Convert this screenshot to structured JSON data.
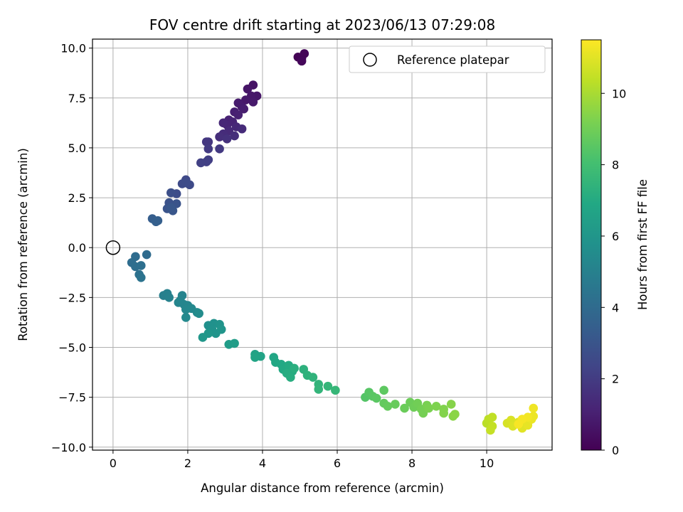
{
  "chart_data": {
    "type": "scatter",
    "title": "FOV centre drift starting at 2023/06/13 07:29:08",
    "xlabel": "Angular distance from reference (arcmin)",
    "ylabel": "Rotation from reference (arcmin)",
    "xlim": [
      -0.55,
      11.75
    ],
    "ylim": [
      -10.15,
      10.45
    ],
    "xticks": [
      0,
      2,
      4,
      6,
      8,
      10
    ],
    "yticks": [
      -10.0,
      -7.5,
      -5.0,
      -2.5,
      0.0,
      2.5,
      5.0,
      7.5,
      10.0
    ],
    "grid": true,
    "legend": {
      "position": "top-right",
      "entries": [
        "Reference platepar"
      ]
    },
    "reference_point": {
      "x": 0,
      "y": 0
    },
    "colorbar": {
      "label": "Hours from first FF file",
      "colormap": "viridis",
      "range": [
        0,
        11.5
      ],
      "ticks": [
        0,
        2,
        4,
        6,
        8,
        10
      ]
    },
    "series": [
      {
        "points": [
          {
            "x": 4.95,
            "y": 9.55,
            "c": 0.05
          },
          {
            "x": 5.05,
            "y": 9.5,
            "c": 0.1
          },
          {
            "x": 5.12,
            "y": 9.72,
            "c": 0.15
          },
          {
            "x": 5.05,
            "y": 9.35,
            "c": 0.2
          },
          {
            "x": 3.75,
            "y": 8.15,
            "c": 0.6
          },
          {
            "x": 3.6,
            "y": 7.95,
            "c": 0.65
          },
          {
            "x": 3.85,
            "y": 7.6,
            "c": 0.7
          },
          {
            "x": 3.7,
            "y": 7.6,
            "c": 0.72
          },
          {
            "x": 3.55,
            "y": 7.4,
            "c": 0.78
          },
          {
            "x": 3.75,
            "y": 7.3,
            "c": 0.8
          },
          {
            "x": 3.45,
            "y": 7.05,
            "c": 0.88
          },
          {
            "x": 3.35,
            "y": 7.25,
            "c": 0.9
          },
          {
            "x": 3.5,
            "y": 6.95,
            "c": 0.95
          },
          {
            "x": 3.25,
            "y": 6.8,
            "c": 1.0
          },
          {
            "x": 3.35,
            "y": 6.65,
            "c": 1.05
          },
          {
            "x": 3.1,
            "y": 6.4,
            "c": 1.1
          },
          {
            "x": 3.2,
            "y": 6.3,
            "c": 1.15
          },
          {
            "x": 3.05,
            "y": 6.15,
            "c": 1.2
          },
          {
            "x": 2.95,
            "y": 6.25,
            "c": 1.25
          },
          {
            "x": 3.3,
            "y": 6.05,
            "c": 1.3
          },
          {
            "x": 3.1,
            "y": 5.85,
            "c": 1.35
          },
          {
            "x": 3.45,
            "y": 5.95,
            "c": 1.4
          },
          {
            "x": 2.95,
            "y": 5.7,
            "c": 1.45
          },
          {
            "x": 3.25,
            "y": 5.6,
            "c": 1.5
          },
          {
            "x": 2.85,
            "y": 5.55,
            "c": 1.55
          },
          {
            "x": 3.05,
            "y": 5.45,
            "c": 1.6
          },
          {
            "x": 2.55,
            "y": 5.3,
            "c": 1.8
          },
          {
            "x": 2.5,
            "y": 5.3,
            "c": 1.85
          },
          {
            "x": 2.85,
            "y": 4.95,
            "c": 1.9
          },
          {
            "x": 2.55,
            "y": 4.95,
            "c": 1.95
          },
          {
            "x": 2.55,
            "y": 4.4,
            "c": 2.1
          },
          {
            "x": 2.5,
            "y": 4.3,
            "c": 2.15
          },
          {
            "x": 2.35,
            "y": 4.25,
            "c": 2.2
          },
          {
            "x": 1.95,
            "y": 3.4,
            "c": 2.5
          },
          {
            "x": 2.05,
            "y": 3.15,
            "c": 2.55
          },
          {
            "x": 1.85,
            "y": 3.2,
            "c": 2.6
          },
          {
            "x": 1.95,
            "y": 3.25,
            "c": 2.62
          },
          {
            "x": 1.7,
            "y": 2.7,
            "c": 2.7
          },
          {
            "x": 1.55,
            "y": 2.75,
            "c": 2.75
          },
          {
            "x": 1.5,
            "y": 2.25,
            "c": 2.9
          },
          {
            "x": 1.7,
            "y": 2.2,
            "c": 2.95
          },
          {
            "x": 1.45,
            "y": 1.95,
            "c": 3.0
          },
          {
            "x": 1.6,
            "y": 1.85,
            "c": 3.05
          },
          {
            "x": 1.55,
            "y": 2.0,
            "c": 3.1
          },
          {
            "x": 1.05,
            "y": 1.45,
            "c": 3.4
          },
          {
            "x": 1.2,
            "y": 1.35,
            "c": 3.45
          },
          {
            "x": 1.15,
            "y": 1.3,
            "c": 3.5
          },
          {
            "x": 0.9,
            "y": -0.35,
            "c": 4.0
          },
          {
            "x": 0.6,
            "y": -0.45,
            "c": 4.05
          },
          {
            "x": 0.5,
            "y": -0.75,
            "c": 4.1
          },
          {
            "x": 0.6,
            "y": -0.95,
            "c": 4.15
          },
          {
            "x": 0.75,
            "y": -0.9,
            "c": 4.2
          },
          {
            "x": 0.7,
            "y": -1.35,
            "c": 4.3
          },
          {
            "x": 0.75,
            "y": -1.5,
            "c": 4.35
          },
          {
            "x": 1.35,
            "y": -2.4,
            "c": 4.9
          },
          {
            "x": 1.45,
            "y": -2.3,
            "c": 4.95
          },
          {
            "x": 1.5,
            "y": -2.5,
            "c": 5.0
          },
          {
            "x": 1.85,
            "y": -2.4,
            "c": 5.1
          },
          {
            "x": 1.8,
            "y": -2.65,
            "c": 5.15
          },
          {
            "x": 1.9,
            "y": -2.85,
            "c": 5.2
          },
          {
            "x": 1.75,
            "y": -2.75,
            "c": 5.22
          },
          {
            "x": 2.0,
            "y": -2.9,
            "c": 5.25
          },
          {
            "x": 1.95,
            "y": -3.1,
            "c": 5.3
          },
          {
            "x": 2.1,
            "y": -3.05,
            "c": 5.35
          },
          {
            "x": 1.95,
            "y": -3.5,
            "c": 5.4
          },
          {
            "x": 2.25,
            "y": -3.25,
            "c": 5.45
          },
          {
            "x": 2.3,
            "y": -3.3,
            "c": 5.5
          },
          {
            "x": 2.55,
            "y": -3.9,
            "c": 5.7
          },
          {
            "x": 2.7,
            "y": -3.8,
            "c": 5.75
          },
          {
            "x": 2.65,
            "y": -4.1,
            "c": 5.8
          },
          {
            "x": 2.85,
            "y": -3.85,
            "c": 5.85
          },
          {
            "x": 2.75,
            "y": -4.3,
            "c": 5.9
          },
          {
            "x": 2.9,
            "y": -4.1,
            "c": 5.95
          },
          {
            "x": 2.55,
            "y": -4.3,
            "c": 6.0
          },
          {
            "x": 2.4,
            "y": -4.5,
            "c": 6.05
          },
          {
            "x": 3.1,
            "y": -4.85,
            "c": 6.3
          },
          {
            "x": 3.25,
            "y": -4.8,
            "c": 6.35
          },
          {
            "x": 3.8,
            "y": -5.35,
            "c": 6.6
          },
          {
            "x": 3.95,
            "y": -5.45,
            "c": 6.65
          },
          {
            "x": 3.8,
            "y": -5.5,
            "c": 6.7
          },
          {
            "x": 4.3,
            "y": -5.5,
            "c": 6.8
          },
          {
            "x": 4.35,
            "y": -5.75,
            "c": 6.85
          },
          {
            "x": 4.5,
            "y": -5.85,
            "c": 6.9
          },
          {
            "x": 4.55,
            "y": -6.1,
            "c": 6.95
          },
          {
            "x": 4.7,
            "y": -5.9,
            "c": 7.0
          },
          {
            "x": 4.8,
            "y": -6.2,
            "c": 7.05
          },
          {
            "x": 4.65,
            "y": -6.3,
            "c": 7.1
          },
          {
            "x": 4.75,
            "y": -6.5,
            "c": 7.15
          },
          {
            "x": 4.85,
            "y": -6.05,
            "c": 7.2
          },
          {
            "x": 5.1,
            "y": -6.1,
            "c": 7.3
          },
          {
            "x": 5.2,
            "y": -6.4,
            "c": 7.35
          },
          {
            "x": 5.35,
            "y": -6.5,
            "c": 7.4
          },
          {
            "x": 5.5,
            "y": -6.85,
            "c": 7.45
          },
          {
            "x": 5.5,
            "y": -7.1,
            "c": 7.5
          },
          {
            "x": 5.75,
            "y": -6.95,
            "c": 7.55
          },
          {
            "x": 5.95,
            "y": -7.15,
            "c": 7.6
          },
          {
            "x": 6.75,
            "y": -7.5,
            "c": 8.4
          },
          {
            "x": 6.85,
            "y": -7.25,
            "c": 8.45
          },
          {
            "x": 6.95,
            "y": -7.45,
            "c": 8.5
          },
          {
            "x": 7.05,
            "y": -7.55,
            "c": 8.55
          },
          {
            "x": 7.25,
            "y": -7.15,
            "c": 8.6
          },
          {
            "x": 7.25,
            "y": -7.8,
            "c": 8.7
          },
          {
            "x": 7.35,
            "y": -7.95,
            "c": 8.75
          },
          {
            "x": 7.55,
            "y": -7.85,
            "c": 8.8
          },
          {
            "x": 7.8,
            "y": -8.05,
            "c": 8.85
          },
          {
            "x": 7.95,
            "y": -7.75,
            "c": 8.9
          },
          {
            "x": 8.05,
            "y": -8.0,
            "c": 8.95
          },
          {
            "x": 8.15,
            "y": -7.8,
            "c": 9.0
          },
          {
            "x": 8.25,
            "y": -8.1,
            "c": 9.05
          },
          {
            "x": 8.3,
            "y": -8.3,
            "c": 9.1
          },
          {
            "x": 8.4,
            "y": -7.9,
            "c": 9.15
          },
          {
            "x": 8.45,
            "y": -8.05,
            "c": 9.2
          },
          {
            "x": 8.65,
            "y": -7.95,
            "c": 9.25
          },
          {
            "x": 8.85,
            "y": -8.1,
            "c": 9.3
          },
          {
            "x": 8.85,
            "y": -8.3,
            "c": 9.35
          },
          {
            "x": 9.05,
            "y": -7.85,
            "c": 9.4
          },
          {
            "x": 9.1,
            "y": -8.45,
            "c": 9.45
          },
          {
            "x": 9.15,
            "y": -8.35,
            "c": 9.5
          },
          {
            "x": 10.0,
            "y": -8.8,
            "c": 10.3
          },
          {
            "x": 10.05,
            "y": -8.6,
            "c": 10.35
          },
          {
            "x": 10.15,
            "y": -8.5,
            "c": 10.4
          },
          {
            "x": 10.15,
            "y": -8.95,
            "c": 10.45
          },
          {
            "x": 10.1,
            "y": -9.15,
            "c": 10.5
          },
          {
            "x": 10.55,
            "y": -8.8,
            "c": 10.8
          },
          {
            "x": 10.65,
            "y": -8.65,
            "c": 10.85
          },
          {
            "x": 10.7,
            "y": -8.95,
            "c": 10.9
          },
          {
            "x": 10.85,
            "y": -8.75,
            "c": 10.95
          },
          {
            "x": 10.95,
            "y": -9.05,
            "c": 11.0
          },
          {
            "x": 11.0,
            "y": -8.7,
            "c": 11.05
          },
          {
            "x": 11.1,
            "y": -8.9,
            "c": 11.1
          },
          {
            "x": 11.2,
            "y": -8.6,
            "c": 11.15
          },
          {
            "x": 11.25,
            "y": -8.45,
            "c": 11.2
          },
          {
            "x": 11.25,
            "y": -8.05,
            "c": 11.25
          },
          {
            "x": 11.1,
            "y": -8.5,
            "c": 11.3
          },
          {
            "x": 10.95,
            "y": -8.6,
            "c": 11.35
          },
          {
            "x": 10.85,
            "y": -8.85,
            "c": 11.4
          }
        ]
      }
    ]
  }
}
